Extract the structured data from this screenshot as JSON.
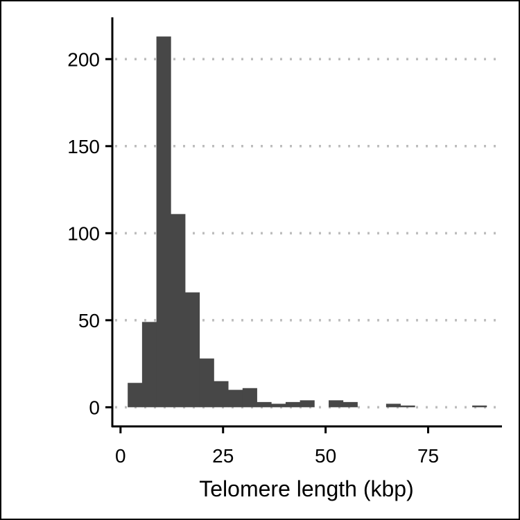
{
  "chart_data": {
    "type": "bar",
    "subtype": "histogram",
    "xlabel": "Telomere length (kbp)",
    "ylabel": "",
    "title": "",
    "xlim": [
      -2,
      93
    ],
    "ylim": [
      -11,
      224
    ],
    "x_ticks": [
      0,
      25,
      50,
      75
    ],
    "y_ticks": [
      0,
      50,
      100,
      150,
      200
    ],
    "grid": "horizontal dotted",
    "bar_color": "#474747",
    "grid_color": "#bdbdbd",
    "bin_width": 3.5,
    "bins": [
      {
        "x0": 1.75,
        "x1": 5.25,
        "value": 14
      },
      {
        "x0": 5.25,
        "x1": 8.75,
        "value": 49
      },
      {
        "x0": 8.75,
        "x1": 12.25,
        "value": 213
      },
      {
        "x0": 12.25,
        "x1": 15.75,
        "value": 111
      },
      {
        "x0": 15.75,
        "x1": 19.25,
        "value": 66
      },
      {
        "x0": 19.25,
        "x1": 22.75,
        "value": 28
      },
      {
        "x0": 22.75,
        "x1": 26.25,
        "value": 15
      },
      {
        "x0": 26.25,
        "x1": 29.75,
        "value": 10
      },
      {
        "x0": 29.75,
        "x1": 33.25,
        "value": 11
      },
      {
        "x0": 33.25,
        "x1": 36.75,
        "value": 3
      },
      {
        "x0": 36.75,
        "x1": 40.25,
        "value": 2
      },
      {
        "x0": 40.25,
        "x1": 43.75,
        "value": 3
      },
      {
        "x0": 43.75,
        "x1": 47.25,
        "value": 4
      },
      {
        "x0": 47.25,
        "x1": 50.75,
        "value": 0
      },
      {
        "x0": 50.75,
        "x1": 54.25,
        "value": 4
      },
      {
        "x0": 54.25,
        "x1": 57.75,
        "value": 3
      },
      {
        "x0": 57.75,
        "x1": 61.25,
        "value": 0
      },
      {
        "x0": 61.25,
        "x1": 64.75,
        "value": 0
      },
      {
        "x0": 64.75,
        "x1": 68.25,
        "value": 2
      },
      {
        "x0": 68.25,
        "x1": 71.75,
        "value": 1
      },
      {
        "x0": 71.75,
        "x1": 75.25,
        "value": 0
      },
      {
        "x0": 75.25,
        "x1": 78.75,
        "value": 0
      },
      {
        "x0": 78.75,
        "x1": 82.25,
        "value": 0
      },
      {
        "x0": 82.25,
        "x1": 85.75,
        "value": 0
      },
      {
        "x0": 85.75,
        "x1": 89.25,
        "value": 1
      }
    ]
  }
}
